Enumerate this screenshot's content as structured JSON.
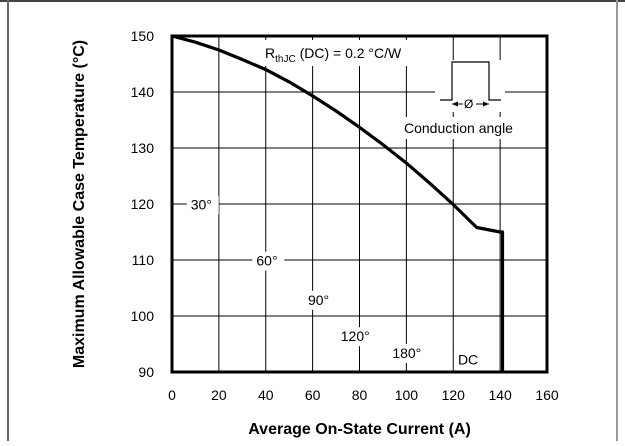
{
  "chart_data": {
    "type": "line",
    "xlabel": "Average On-State Current (A)",
    "ylabel": "Maximum Allowable Case Temperature (°C)",
    "xlim": [
      0,
      160
    ],
    "ylim": [
      90,
      150
    ],
    "x_ticks": [
      0,
      20,
      40,
      60,
      80,
      100,
      120,
      140,
      160
    ],
    "y_ticks": [
      90,
      100,
      110,
      120,
      130,
      140,
      150
    ],
    "grid": true,
    "series": [
      {
        "x": [
          0,
          10,
          20,
          30,
          40,
          50,
          60,
          70,
          80,
          90,
          100,
          110,
          120,
          130,
          140,
          141,
          141
        ],
        "y": [
          150,
          148.9,
          147.5,
          145.8,
          144.0,
          141.8,
          139.3,
          136.6,
          133.7,
          130.6,
          127.3,
          123.7,
          119.9,
          115.8,
          115,
          115,
          90
        ]
      }
    ],
    "annotations": {
      "rthjc_main": "R",
      "rthjc_sub": "thJC",
      "rthjc_rest": " (DC) = 0.2 °C/W",
      "conduction_symbol": "Ø",
      "conduction_label": "Conduction angle",
      "angle_labels": [
        {
          "text": "30°",
          "x": 8,
          "y": 119
        },
        {
          "text": "60°",
          "x": 36,
          "y": 109
        },
        {
          "text": "90°",
          "x": 58,
          "y": 102
        },
        {
          "text": "120°",
          "x": 72,
          "y": 95.5
        },
        {
          "text": "180°",
          "x": 94,
          "y": 92.5
        },
        {
          "text": "DC",
          "x": 122,
          "y": 91.3
        }
      ]
    }
  }
}
